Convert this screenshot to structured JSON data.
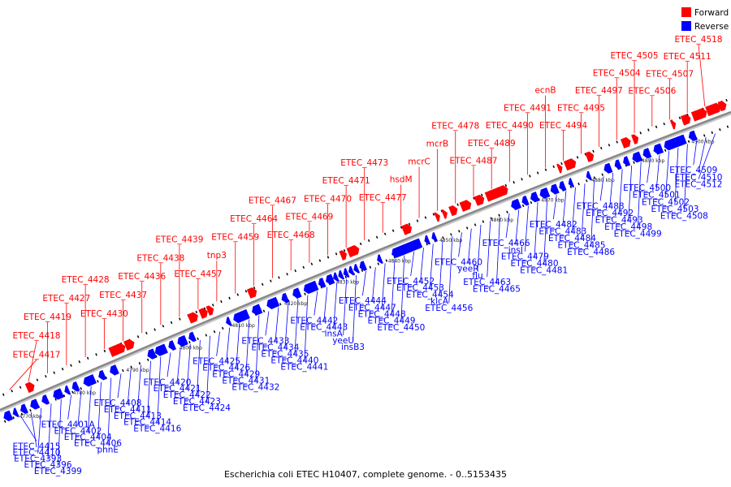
{
  "colors": {
    "forward": "#ff0000",
    "reverse": "#0000ff",
    "backbone": "#888888"
  },
  "legend": [
    {
      "label": "Forward",
      "color": "#ff0000"
    },
    {
      "label": "Reverse",
      "color": "#0000ff"
    }
  ],
  "caption": "Escherichia coli ETEC H10407, complete genome. - 0..5153435",
  "scale_ticks": [
    "4770 kbp",
    "4780 kbp",
    "4790 kbp",
    "4800 kbp",
    "4810 kbp",
    "4820 kbp",
    "4830 kbp",
    "4840 kbp",
    "4850 kbp",
    "4860 kbp",
    "4870 kbp",
    "4880 kbp",
    "4890 kbp",
    "4900 kbp"
  ],
  "forward_labels": [
    "ETEC_4417",
    "ETEC_4418",
    "ETEC_4419",
    "ETEC_4427",
    "ETEC_4428",
    "ETEC_4430",
    "ETEC_4437",
    "ETEC_4436",
    "ETEC_4438",
    "ETEC_4439",
    "ETEC_4457",
    "tnp3",
    "ETEC_4459",
    "ETEC_4464",
    "ETEC_4467",
    "ETEC_4468",
    "ETEC_4469",
    "ETEC_4470",
    "ETEC_4471",
    "ETEC_4473",
    "ETEC_4477",
    "hsdM",
    "mcrC",
    "mcrB",
    "ETEC_4478",
    "ETEC_4487",
    "ETEC_4489",
    "ETEC_4490",
    "ETEC_4491",
    "ecnB",
    "ETEC_4494",
    "ETEC_4495",
    "ETEC_4497",
    "ETEC_4504",
    "ETEC_4505",
    "ETEC_4506",
    "ETEC_4507",
    "ETEC_4511",
    "ETEC_4518"
  ],
  "reverse_labels": [
    "ETEC_4415",
    "ETEC_4410",
    "ETEC_4393",
    "ETEC_4396",
    "ETEC_4399",
    "ETEC_4401A",
    "ETEC_4402",
    "ETEC_4404",
    "ETEC_4406",
    "phnE",
    "ETEC_4408",
    "ETEC_4411",
    "ETEC_4413",
    "ETEC_4414",
    "ETEC_4416",
    "ETEC_4420",
    "ETEC_4421",
    "ETEC_4422",
    "ETEC_4423",
    "ETEC_4424",
    "ETEC_4425",
    "ETEC_4426",
    "ETEC_4429",
    "ETEC_4431",
    "ETEC_4432",
    "ETEC_4433",
    "ETEC_4434",
    "ETEC_4435",
    "ETEC_4440",
    "ETEC_4441",
    "ETEC_4442",
    "ETEC_4443",
    "insA",
    "yeeU",
    "insB3",
    "ETEC_4444",
    "ETEC_4447",
    "ETEC_4448",
    "ETEC_4449",
    "ETEC_4450",
    "ETEC_4452",
    "ETEC_4453",
    "ETEC_4454",
    "klcA",
    "ETEC_4456",
    "ETEC_4460",
    "yeeR",
    "flu",
    "ETEC_4463",
    "ETEC_4465",
    "ETEC_4466",
    "insI",
    "ETEC_4479",
    "ETEC_4480",
    "ETEC_4481",
    "ETEC_4482",
    "ETEC_4483",
    "ETEC_4484",
    "ETEC_4485",
    "ETEC_4486",
    "ETEC_4488",
    "ETEC_4492",
    "ETEC_4493",
    "ETEC_4498",
    "ETEC_4499",
    "ETEC_4500",
    "ETEC_4501",
    "ETEC_4502",
    "ETEC_4503",
    "ETEC_4508",
    "ETEC_4509",
    "ETEC_4510",
    "ETEC_4512"
  ]
}
